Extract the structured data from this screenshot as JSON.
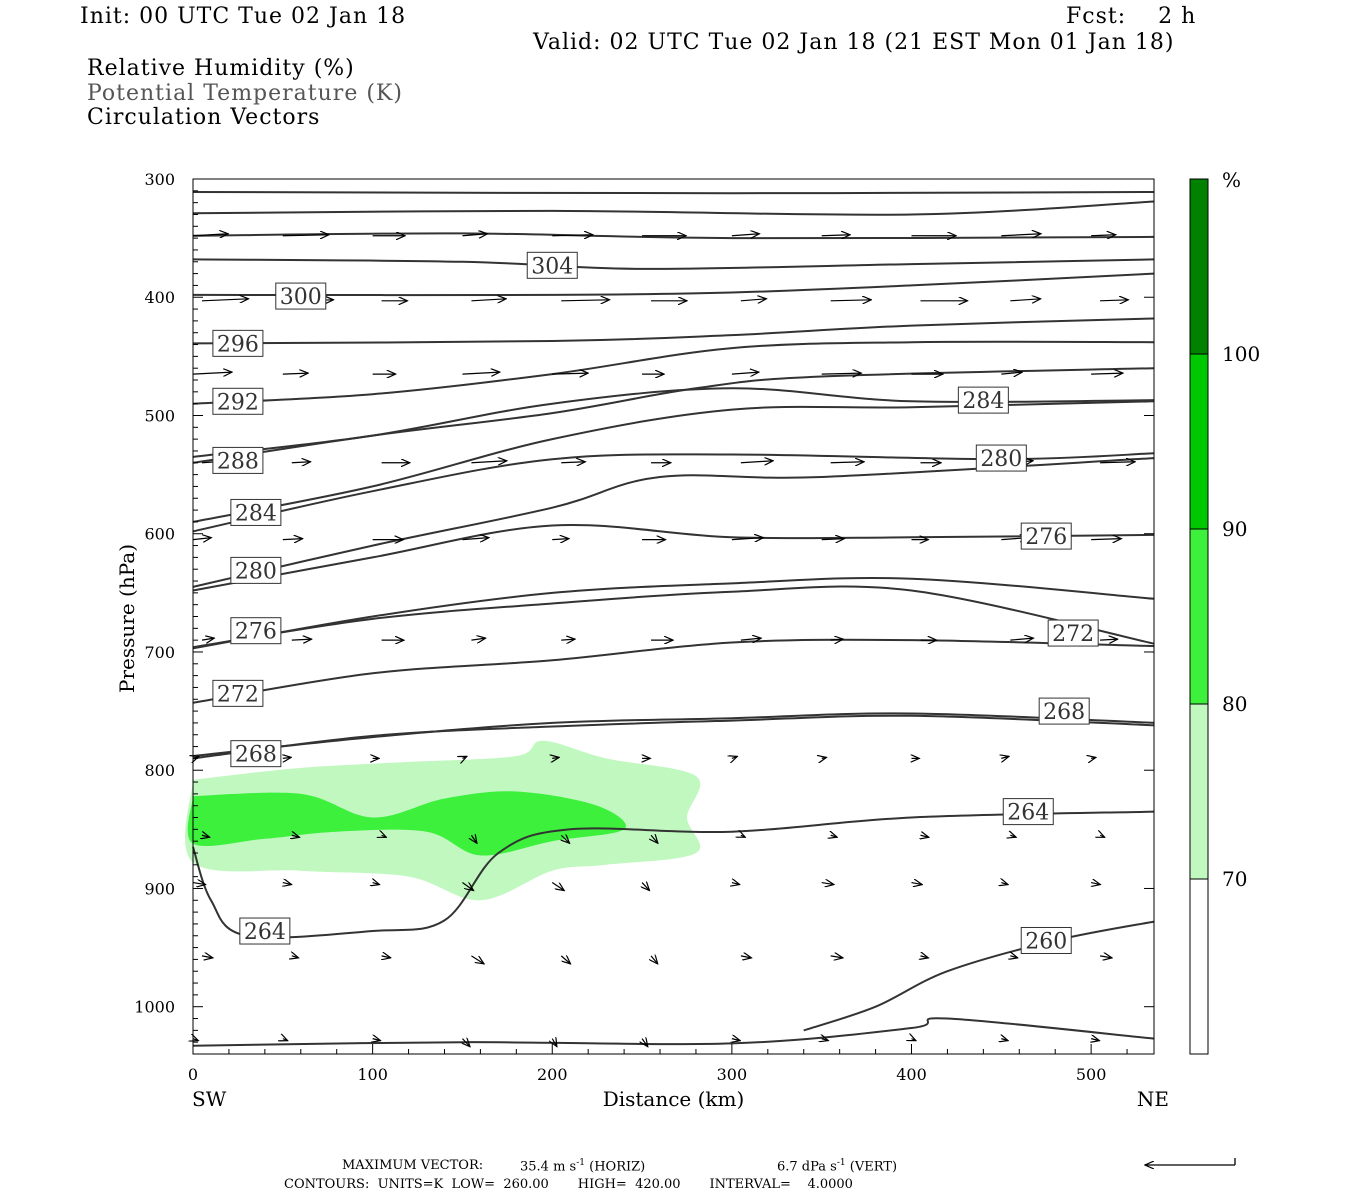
{
  "header": {
    "init": "Init: 00 UTC Tue 02 Jan 18",
    "fcst": "Fcst:    2 h",
    "valid": "Valid: 02 UTC Tue 02 Jan 18 (21 EST Mon 01 Jan 18)"
  },
  "fields": {
    "rh": "Relative Humidity (%)",
    "theta": "Potential Temperature (K)",
    "vectors": "Circulation Vectors"
  },
  "footer": {
    "max_vector_label": "MAXIMUM VECTOR:",
    "max_horiz": "35.4 m s",
    "horiz_tag": "(HORIZ)",
    "max_vert": "6.7 dPa s",
    "vert_tag": "(VERT)",
    "exponent": "-1",
    "contours": "CONTOURS:  UNITS=K  LOW=  260.00       HIGH=  420.00       INTERVAL=    4.0000"
  },
  "chart_data": {
    "type": "cross-section",
    "xlabel": "Distance (km)",
    "ylabel": "Pressure (hPa)",
    "x_end_left": "SW",
    "x_end_right": "NE",
    "xlim": [
      0,
      535
    ],
    "ylim": [
      1040,
      300
    ],
    "x_ticks": [
      0,
      100,
      200,
      300,
      400,
      500
    ],
    "y_ticks": [
      300,
      400,
      500,
      600,
      700,
      800,
      900,
      1000
    ],
    "colorbar": {
      "unit": "%",
      "levels": [
        70,
        80,
        90,
        100
      ],
      "colors": [
        "#ffffff",
        "#c0f8c0",
        "#3cf03c",
        "#00c800",
        "#008200"
      ]
    },
    "theta_contours": [
      {
        "label": "",
        "points": [
          [
            0,
            311
          ],
          [
            300,
            312
          ],
          [
            535,
            311
          ]
        ]
      },
      {
        "label": "",
        "points": [
          [
            0,
            329
          ],
          [
            200,
            327
          ],
          [
            400,
            330
          ],
          [
            535,
            319
          ]
        ]
      },
      {
        "label": "",
        "points": [
          [
            0,
            348
          ],
          [
            150,
            346
          ],
          [
            300,
            350
          ],
          [
            535,
            349
          ]
        ]
      },
      {
        "label": "304",
        "lx": 200,
        "ly": 373,
        "points": [
          [
            0,
            368
          ],
          [
            150,
            370
          ],
          [
            250,
            376
          ],
          [
            400,
            372
          ],
          [
            535,
            368
          ]
        ]
      },
      {
        "label": "300",
        "lx": 60,
        "ly": 399,
        "points": [
          [
            0,
            398
          ],
          [
            200,
            398
          ],
          [
            300,
            396
          ],
          [
            400,
            390
          ],
          [
            535,
            380
          ]
        ]
      },
      {
        "label": "296",
        "lx": 25,
        "ly": 439,
        "points": [
          [
            0,
            439
          ],
          [
            200,
            437
          ],
          [
            300,
            432
          ],
          [
            400,
            424
          ],
          [
            535,
            418
          ]
        ]
      },
      {
        "label": "292",
        "lx": 25,
        "ly": 488,
        "points": [
          [
            0,
            490
          ],
          [
            100,
            482
          ],
          [
            200,
            465
          ],
          [
            300,
            443
          ],
          [
            400,
            438
          ],
          [
            535,
            438
          ]
        ]
      },
      {
        "label": "284",
        "lx": 440,
        "ly": 487,
        "points": [
          [
            0,
            535
          ],
          [
            100,
            517
          ],
          [
            200,
            490
          ],
          [
            300,
            477
          ],
          [
            400,
            488
          ],
          [
            535,
            487
          ]
        ]
      },
      {
        "label": "288",
        "lx": 25,
        "ly": 538,
        "points": [
          [
            0,
            540
          ],
          [
            100,
            517
          ],
          [
            200,
            498
          ],
          [
            280,
            477
          ],
          [
            350,
            467
          ],
          [
            535,
            460
          ]
        ]
      },
      {
        "label": "280",
        "lx": 450,
        "ly": 536,
        "points": [
          [
            0,
            598
          ],
          [
            100,
            564
          ],
          [
            200,
            537
          ],
          [
            300,
            533
          ],
          [
            450,
            537
          ],
          [
            535,
            532
          ]
        ]
      },
      {
        "label": "284",
        "lx": 35,
        "ly": 582,
        "points": [
          [
            0,
            590
          ],
          [
            100,
            560
          ],
          [
            200,
            520
          ],
          [
            300,
            495
          ],
          [
            400,
            493
          ],
          [
            535,
            488
          ]
        ]
      },
      {
        "label": "276",
        "lx": 475,
        "ly": 602,
        "points": [
          [
            0,
            648
          ],
          [
            100,
            620
          ],
          [
            200,
            593
          ],
          [
            300,
            603
          ],
          [
            400,
            603
          ],
          [
            535,
            601
          ]
        ]
      },
      {
        "label": "280",
        "lx": 35,
        "ly": 631,
        "points": [
          [
            0,
            645
          ],
          [
            100,
            610
          ],
          [
            200,
            578
          ],
          [
            260,
            552
          ],
          [
            350,
            552
          ],
          [
            535,
            536
          ]
        ]
      },
      {
        "label": "272",
        "lx": 490,
        "ly": 684,
        "points": [
          [
            0,
            696
          ],
          [
            100,
            672
          ],
          [
            200,
            659
          ],
          [
            300,
            649
          ],
          [
            400,
            648
          ],
          [
            535,
            693
          ]
        ]
      },
      {
        "label": "276",
        "lx": 35,
        "ly": 682,
        "points": [
          [
            0,
            697
          ],
          [
            100,
            670
          ],
          [
            200,
            650
          ],
          [
            300,
            642
          ],
          [
            400,
            638
          ],
          [
            535,
            655
          ]
        ]
      },
      {
        "label": "272",
        "lx": 25,
        "ly": 735,
        "points": [
          [
            0,
            743
          ],
          [
            100,
            718
          ],
          [
            200,
            707
          ],
          [
            300,
            692
          ],
          [
            400,
            690
          ],
          [
            535,
            695
          ]
        ]
      },
      {
        "label": "268",
        "lx": 485,
        "ly": 750,
        "points": [
          [
            0,
            788
          ],
          [
            100,
            772
          ],
          [
            200,
            760
          ],
          [
            300,
            756
          ],
          [
            400,
            752
          ],
          [
            535,
            760
          ]
        ]
      },
      {
        "label": "268",
        "lx": 35,
        "ly": 786,
        "points": [
          [
            0,
            790
          ],
          [
            100,
            771
          ],
          [
            200,
            763
          ],
          [
            300,
            758
          ],
          [
            400,
            754
          ],
          [
            535,
            762
          ]
        ]
      },
      {
        "label": "264",
        "lx": 465,
        "ly": 835,
        "points": [
          [
            0,
            865
          ],
          [
            10,
            910
          ],
          [
            30,
            940
          ],
          [
            100,
            936
          ],
          [
            140,
            927
          ],
          [
            170,
            870
          ],
          [
            210,
            850
          ],
          [
            300,
            852
          ],
          [
            400,
            840
          ],
          [
            535,
            835
          ]
        ]
      },
      {
        "label": "264",
        "lx": 40,
        "ly": 936,
        "points": []
      },
      {
        "label": "260",
        "lx": 475,
        "ly": 944,
        "points": [
          [
            340,
            1020
          ],
          [
            380,
            1000
          ],
          [
            420,
            970
          ],
          [
            480,
            944
          ],
          [
            535,
            928
          ]
        ]
      },
      {
        "label": "",
        "points": [
          [
            0,
            1033
          ],
          [
            150,
            1030
          ],
          [
            300,
            1031
          ],
          [
            400,
            1018
          ],
          [
            420,
            1010
          ],
          [
            535,
            1027
          ]
        ]
      }
    ],
    "rh_regions": [
      {
        "level": 70,
        "points": [
          [
            0,
            808
          ],
          [
            60,
            798
          ],
          [
            120,
            793
          ],
          [
            180,
            788
          ],
          [
            195,
            775
          ],
          [
            230,
            790
          ],
          [
            280,
            805
          ],
          [
            275,
            840
          ],
          [
            280,
            870
          ],
          [
            230,
            880
          ],
          [
            200,
            885
          ],
          [
            160,
            910
          ],
          [
            120,
            890
          ],
          [
            60,
            885
          ],
          [
            0,
            878
          ]
        ]
      },
      {
        "level": 80,
        "points": [
          [
            0,
            822
          ],
          [
            60,
            820
          ],
          [
            100,
            840
          ],
          [
            140,
            824
          ],
          [
            180,
            818
          ],
          [
            225,
            830
          ],
          [
            240,
            850
          ],
          [
            200,
            860
          ],
          [
            160,
            872
          ],
          [
            130,
            852
          ],
          [
            80,
            852
          ],
          [
            40,
            858
          ],
          [
            0,
            862
          ]
        ]
      }
    ]
  }
}
